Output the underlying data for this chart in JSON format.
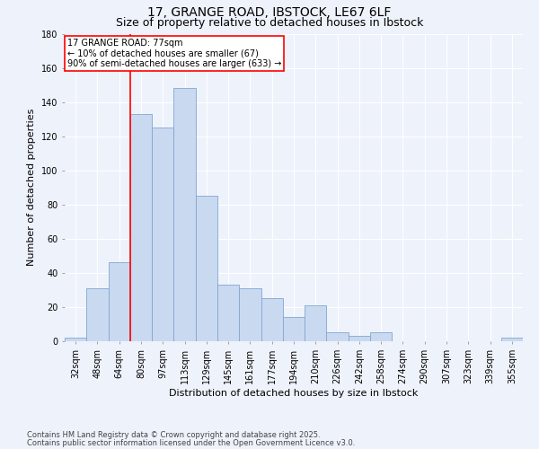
{
  "title": "17, GRANGE ROAD, IBSTOCK, LE67 6LF",
  "subtitle": "Size of property relative to detached houses in Ibstock",
  "xlabel": "Distribution of detached houses by size in Ibstock",
  "ylabel": "Number of detached properties",
  "footnote1": "Contains HM Land Registry data © Crown copyright and database right 2025.",
  "footnote2": "Contains public sector information licensed under the Open Government Licence v3.0.",
  "categories": [
    "32sqm",
    "48sqm",
    "64sqm",
    "80sqm",
    "97sqm",
    "113sqm",
    "129sqm",
    "145sqm",
    "161sqm",
    "177sqm",
    "194sqm",
    "210sqm",
    "226sqm",
    "242sqm",
    "258sqm",
    "274sqm",
    "290sqm",
    "307sqm",
    "323sqm",
    "339sqm",
    "355sqm"
  ],
  "values": [
    2,
    31,
    46,
    133,
    125,
    148,
    85,
    33,
    31,
    25,
    14,
    21,
    5,
    3,
    5,
    0,
    0,
    0,
    0,
    0,
    2
  ],
  "bar_color": "#c9d9f0",
  "bar_edge_color": "#7fa8d0",
  "marker_label1": "17 GRANGE ROAD: 77sqm",
  "marker_label2": "← 10% of detached houses are smaller (67)",
  "marker_label3": "90% of semi-detached houses are larger (633) →",
  "annotation_box_color": "white",
  "annotation_box_edge": "red",
  "vline_color": "red",
  "vline_x": 2.5,
  "ylim": [
    0,
    180
  ],
  "yticks": [
    0,
    20,
    40,
    60,
    80,
    100,
    120,
    140,
    160,
    180
  ],
  "bg_color": "#eef2fb",
  "grid_color": "white",
  "title_fontsize": 10,
  "subtitle_fontsize": 9,
  "axis_fontsize": 8,
  "tick_fontsize": 7,
  "footnote_fontsize": 6,
  "annot_fontsize": 7
}
